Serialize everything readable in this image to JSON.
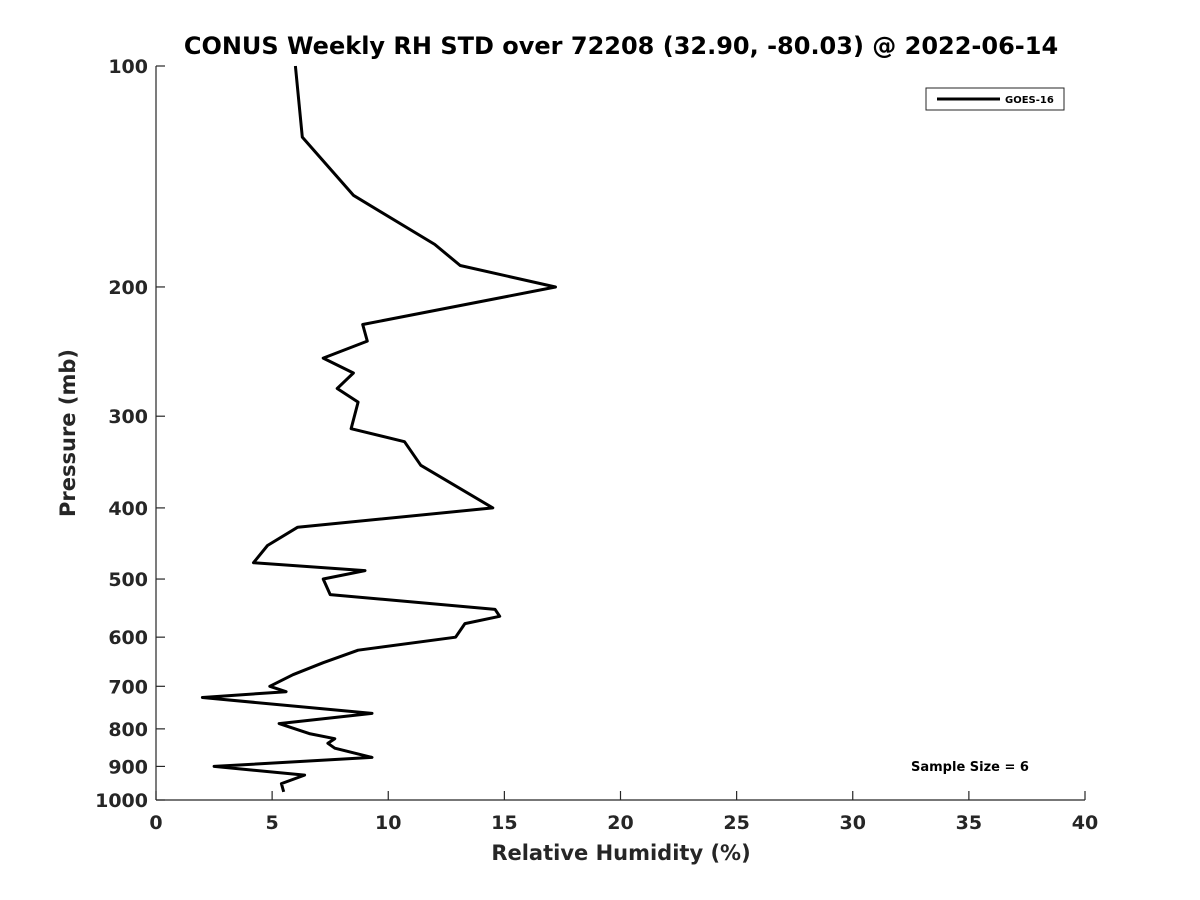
{
  "chart_data": {
    "type": "line",
    "title": "CONUS Weekly RH STD over 72208 (32.90, -80.03) @ 2022-06-14",
    "xlabel": "Relative Humidity (%)",
    "ylabel": "Pressure (mb)",
    "xlim": [
      0,
      40
    ],
    "ylim": [
      100,
      1000
    ],
    "y_scale": "log",
    "y_direction": "reversed",
    "grid": false,
    "legend_position": "top-right",
    "x_ticks": [
      0,
      5,
      10,
      15,
      20,
      25,
      30,
      35,
      40
    ],
    "y_ticks": [
      100,
      200,
      300,
      400,
      500,
      600,
      700,
      800,
      900,
      1000
    ],
    "annotation": "Sample Size = 6",
    "series": [
      {
        "name": "GOES-16",
        "color": "#000000",
        "points": [
          [
            6.0,
            100
          ],
          [
            6.3,
            125
          ],
          [
            8.5,
            150
          ],
          [
            12.0,
            175
          ],
          [
            13.1,
            187
          ],
          [
            17.2,
            200
          ],
          [
            8.9,
            225
          ],
          [
            9.1,
            237
          ],
          [
            7.2,
            250
          ],
          [
            8.5,
            262
          ],
          [
            7.8,
            275
          ],
          [
            8.7,
            287
          ],
          [
            8.4,
            312
          ],
          [
            10.7,
            325
          ],
          [
            11.4,
            350
          ],
          [
            14.5,
            400
          ],
          [
            6.1,
            425
          ],
          [
            4.8,
            450
          ],
          [
            4.2,
            475
          ],
          [
            9.0,
            487
          ],
          [
            7.2,
            500
          ],
          [
            7.5,
            525
          ],
          [
            14.6,
            550
          ],
          [
            14.8,
            562
          ],
          [
            13.3,
            575
          ],
          [
            12.9,
            600
          ],
          [
            8.7,
            625
          ],
          [
            7.2,
            650
          ],
          [
            5.9,
            675
          ],
          [
            4.9,
            700
          ],
          [
            5.6,
            712
          ],
          [
            2.0,
            725
          ],
          [
            9.3,
            762
          ],
          [
            5.3,
            787
          ],
          [
            6.6,
            812
          ],
          [
            7.7,
            825
          ],
          [
            7.4,
            837
          ],
          [
            7.7,
            850
          ],
          [
            9.3,
            875
          ],
          [
            2.5,
            900
          ],
          [
            6.4,
            925
          ],
          [
            5.4,
            950
          ],
          [
            5.5,
            975
          ]
        ]
      }
    ]
  }
}
